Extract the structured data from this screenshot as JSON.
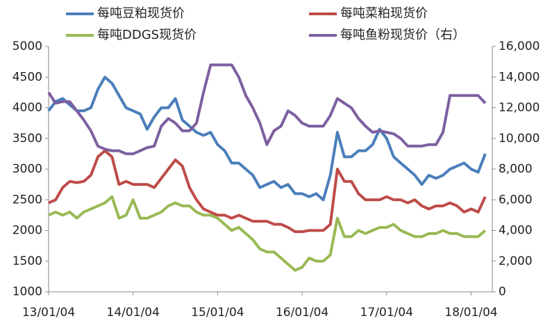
{
  "chart_data": {
    "type": "line",
    "x": [
      0,
      1,
      2,
      3,
      4,
      5,
      6,
      7,
      8,
      9,
      10,
      11,
      12,
      13,
      14,
      15,
      16,
      17,
      18,
      19,
      20,
      21,
      22,
      23,
      24,
      25,
      26,
      27,
      28,
      29,
      30,
      31,
      32,
      33,
      34,
      35,
      36,
      37,
      38,
      39,
      40,
      41,
      42,
      43,
      44,
      45,
      46,
      47,
      48,
      49,
      50,
      51,
      52,
      53,
      54,
      55,
      56,
      57,
      58,
      59,
      60,
      61,
      62
    ],
    "xlim": [
      0,
      63
    ],
    "xticks": [
      {
        "value": 0,
        "label": "13/01/04"
      },
      {
        "value": 12,
        "label": "14/01/04"
      },
      {
        "value": 24,
        "label": "15/01/04"
      },
      {
        "value": 36,
        "label": "16/01/04"
      },
      {
        "value": 48,
        "label": "17/01/04"
      },
      {
        "value": 60,
        "label": "18/01/04"
      }
    ],
    "ylim": [
      1000,
      5000
    ],
    "yticks": [
      1000,
      1500,
      2000,
      2500,
      3000,
      3500,
      4000,
      4500,
      5000
    ],
    "y2lim": [
      0,
      16000
    ],
    "y2ticks": [
      0,
      {
        "value": 2000,
        "label": "2,000"
      },
      {
        "value": 4000,
        "label": "4,000"
      },
      {
        "value": 6000,
        "label": "6,000"
      },
      {
        "value": 8000,
        "label": "8,000"
      },
      {
        "value": 10000,
        "label": "10,000"
      },
      {
        "value": 12000,
        "label": "12,000"
      },
      {
        "value": 14000,
        "label": "14,000"
      },
      {
        "value": 16000,
        "label": "16,000"
      }
    ],
    "series": [
      {
        "name": "每吨豆粕现货价",
        "color": "#4a7ebb",
        "values": [
          3950,
          4100,
          4150,
          4050,
          3950,
          3950,
          4000,
          4300,
          4500,
          4400,
          4200,
          4000,
          3950,
          3900,
          3650,
          3850,
          4000,
          4000,
          4150,
          3800,
          3700,
          3600,
          3550,
          3600,
          3400,
          3300,
          3100,
          3100,
          3000,
          2900,
          2700,
          2750,
          2800,
          2700,
          2750,
          2600,
          2600,
          2550,
          2600,
          2500,
          2900,
          3600,
          3200,
          3200,
          3300,
          3300,
          3400,
          3650,
          3500,
          3200,
          3100,
          3000,
          2900,
          2750,
          2900,
          2850,
          2900,
          3000,
          3050,
          3100,
          3000,
          2950,
          3250
        ]
      },
      {
        "name": "每吨菜粕现货价",
        "color": "#be4b48",
        "values": [
          2450,
          2500,
          2700,
          2800,
          2780,
          2800,
          2900,
          3200,
          3300,
          3200,
          2750,
          2800,
          2750,
          2750,
          2750,
          2700,
          2850,
          3000,
          3150,
          3050,
          2700,
          2500,
          2350,
          2300,
          2250,
          2250,
          2200,
          2250,
          2200,
          2150,
          2150,
          2150,
          2100,
          2100,
          2050,
          1980,
          1980,
          2000,
          2000,
          2000,
          2100,
          3000,
          2800,
          2800,
          2600,
          2500,
          2500,
          2500,
          2550,
          2500,
          2500,
          2450,
          2500,
          2400,
          2350,
          2400,
          2400,
          2450,
          2400,
          2300,
          2350,
          2300,
          2550
        ]
      },
      {
        "name": "每吨DDGS现货价",
        "color": "#98b954",
        "values": [
          2250,
          2300,
          2250,
          2300,
          2200,
          2300,
          2350,
          2400,
          2450,
          2550,
          2200,
          2250,
          2500,
          2200,
          2200,
          2250,
          2300,
          2400,
          2450,
          2400,
          2400,
          2300,
          2250,
          2250,
          2200,
          2100,
          2000,
          2050,
          1950,
          1850,
          1700,
          1650,
          1650,
          1550,
          1450,
          1350,
          1400,
          1550,
          1500,
          1500,
          1600,
          2200,
          1900,
          1900,
          2000,
          1950,
          2000,
          2050,
          2050,
          2100,
          2000,
          1950,
          1900,
          1900,
          1950,
          1950,
          2000,
          1950,
          1950,
          1900,
          1900,
          1900,
          2000
        ]
      },
      {
        "name": "每吨鱼粉现货价（右）",
        "color": "#7d5fa0",
        "axis": "y2",
        "values": [
          13000,
          12300,
          12400,
          12400,
          11800,
          11200,
          10500,
          9500,
          9300,
          9200,
          9200,
          9000,
          9000,
          9200,
          9400,
          9500,
          10800,
          11300,
          11000,
          10500,
          10500,
          11000,
          13000,
          14800,
          14800,
          14800,
          14800,
          14000,
          12800,
          12000,
          11000,
          9600,
          10500,
          10800,
          11800,
          11500,
          11000,
          10800,
          10800,
          10800,
          11500,
          12600,
          12300,
          12000,
          11300,
          10800,
          10400,
          10500,
          10400,
          10300,
          10000,
          9500,
          9500,
          9500,
          9600,
          9600,
          10400,
          12800,
          12800,
          12800,
          12800,
          12800,
          12300
        ]
      }
    ],
    "grid": false
  }
}
